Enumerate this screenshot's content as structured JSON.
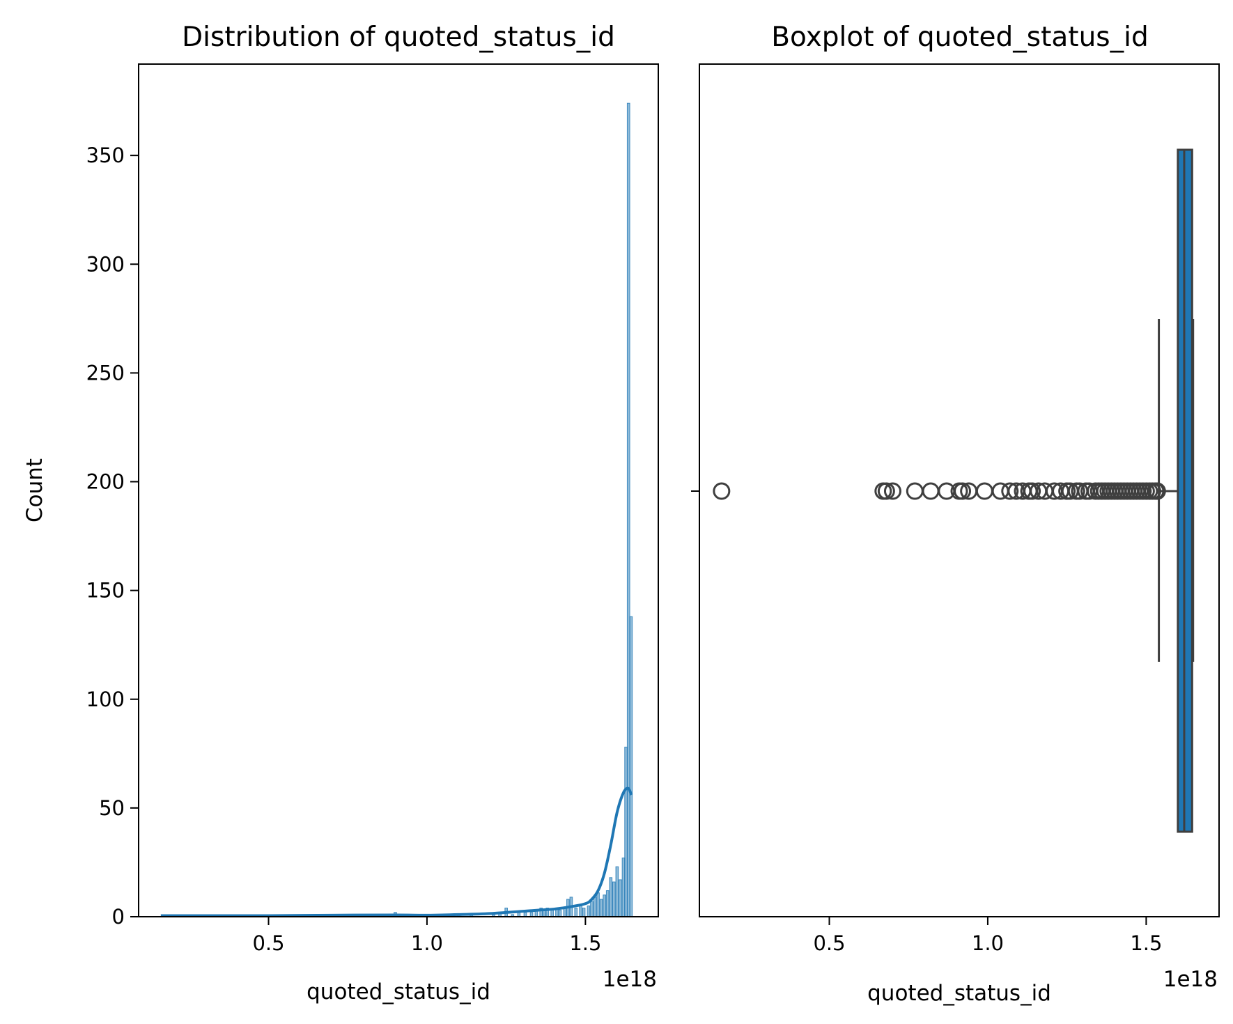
{
  "chart_data": [
    {
      "type": "histogram",
      "title": "Distribution of quoted_status_id",
      "xlabel": "quoted_status_id",
      "ylabel": "Count",
      "x_offset_label": "1e18",
      "xlim": [
        0.09,
        1.73
      ],
      "ylim": [
        0,
        392
      ],
      "xticks": [
        0.5,
        1.0,
        1.5
      ],
      "xtick_labels": [
        "0.5",
        "1.0",
        "1.5"
      ],
      "yticks": [
        0,
        50,
        100,
        150,
        200,
        250,
        300,
        350
      ],
      "ytick_labels": [
        "0",
        "50",
        "100",
        "150",
        "200",
        "250",
        "300",
        "350"
      ],
      "bar_color": "#1f77b4",
      "bins": [
        {
          "x": 0.9,
          "count": 2
        },
        {
          "x": 0.93,
          "count": 1
        },
        {
          "x": 1.1,
          "count": 1
        },
        {
          "x": 1.14,
          "count": 1
        },
        {
          "x": 1.21,
          "count": 1
        },
        {
          "x": 1.23,
          "count": 2
        },
        {
          "x": 1.25,
          "count": 4
        },
        {
          "x": 1.27,
          "count": 1
        },
        {
          "x": 1.29,
          "count": 2
        },
        {
          "x": 1.31,
          "count": 2
        },
        {
          "x": 1.33,
          "count": 2
        },
        {
          "x": 1.345,
          "count": 3
        },
        {
          "x": 1.36,
          "count": 4
        },
        {
          "x": 1.37,
          "count": 3
        },
        {
          "x": 1.38,
          "count": 4
        },
        {
          "x": 1.395,
          "count": 3
        },
        {
          "x": 1.41,
          "count": 4
        },
        {
          "x": 1.42,
          "count": 3
        },
        {
          "x": 1.435,
          "count": 4
        },
        {
          "x": 1.445,
          "count": 8
        },
        {
          "x": 1.455,
          "count": 9
        },
        {
          "x": 1.47,
          "count": 4
        },
        {
          "x": 1.485,
          "count": 5
        },
        {
          "x": 1.495,
          "count": 4
        },
        {
          "x": 1.51,
          "count": 5
        },
        {
          "x": 1.52,
          "count": 7
        },
        {
          "x": 1.53,
          "count": 9
        },
        {
          "x": 1.54,
          "count": 11
        },
        {
          "x": 1.55,
          "count": 8
        },
        {
          "x": 1.56,
          "count": 10
        },
        {
          "x": 1.57,
          "count": 12
        },
        {
          "x": 1.58,
          "count": 18
        },
        {
          "x": 1.59,
          "count": 16
        },
        {
          "x": 1.6,
          "count": 23
        },
        {
          "x": 1.61,
          "count": 17
        },
        {
          "x": 1.62,
          "count": 27
        },
        {
          "x": 1.628,
          "count": 78
        },
        {
          "x": 1.636,
          "count": 374
        },
        {
          "x": 1.644,
          "count": 138
        }
      ],
      "bin_width": 0.008,
      "kde": {
        "x": [
          0.16,
          0.3,
          0.5,
          0.7,
          0.9,
          1.0,
          1.1,
          1.2,
          1.3,
          1.35,
          1.4,
          1.45,
          1.5,
          1.52,
          1.54,
          1.56,
          1.58,
          1.6,
          1.62,
          1.635,
          1.645
        ],
        "y": [
          0.5,
          0.5,
          0.5,
          0.7,
          0.8,
          0.7,
          1.0,
          1.5,
          2.5,
          3.0,
          3.5,
          4.5,
          6.0,
          8.0,
          12.0,
          20.0,
          33.0,
          48.0,
          57.0,
          59.0,
          56.0
        ]
      }
    },
    {
      "type": "boxplot",
      "title": "Boxplot of quoted_status_id",
      "xlabel": "quoted_status_id",
      "x_offset_label": "1e18",
      "xlim": [
        0.09,
        1.73
      ],
      "xticks": [
        0.5,
        1.0,
        1.5
      ],
      "xtick_labels": [
        "0.5",
        "1.0",
        "1.5"
      ],
      "box_color": "#1f77b4",
      "whisker_low": 1.54,
      "q1": 1.6,
      "median": 1.62,
      "q3": 1.645,
      "whisker_high": 1.648,
      "outliers": [
        0.16,
        0.67,
        0.68,
        0.7,
        0.77,
        0.82,
        0.87,
        0.91,
        0.92,
        0.94,
        0.99,
        1.04,
        1.07,
        1.09,
        1.11,
        1.13,
        1.14,
        1.16,
        1.18,
        1.21,
        1.23,
        1.25,
        1.26,
        1.28,
        1.29,
        1.31,
        1.32,
        1.34,
        1.35,
        1.36,
        1.37,
        1.38,
        1.39,
        1.4,
        1.41,
        1.42,
        1.43,
        1.44,
        1.45,
        1.46,
        1.47,
        1.48,
        1.49,
        1.5,
        1.51,
        1.52,
        1.53,
        1.535
      ]
    }
  ]
}
